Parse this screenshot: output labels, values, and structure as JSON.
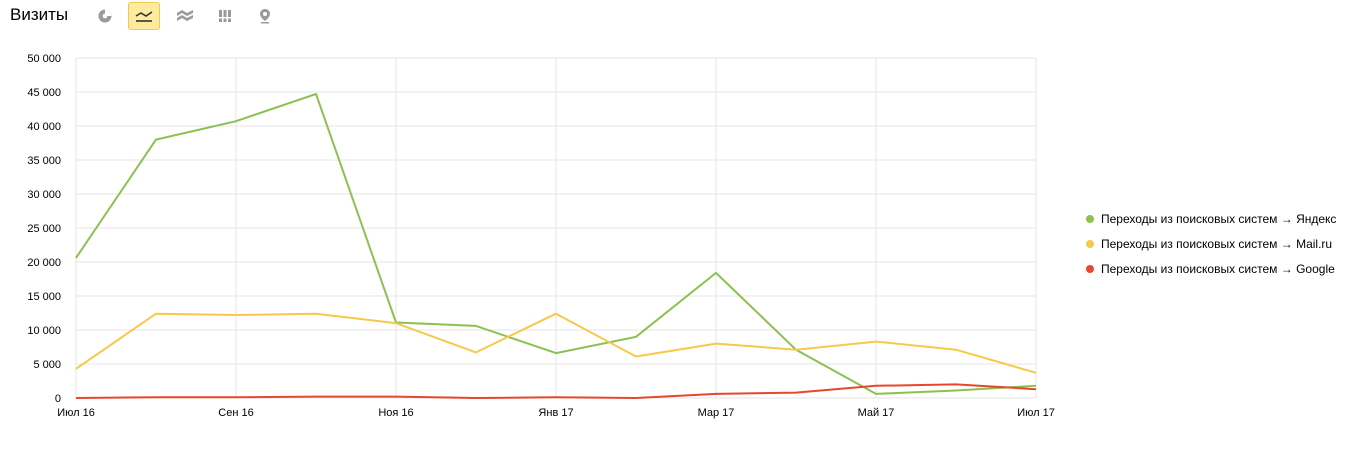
{
  "header": {
    "title": "Визиты",
    "tools": [
      {
        "icon": "pie-chart-icon",
        "active": false
      },
      {
        "icon": "line-chart-icon",
        "active": true
      },
      {
        "icon": "area-chart-icon",
        "active": false
      },
      {
        "icon": "bar-chart-icon",
        "active": false
      },
      {
        "icon": "map-pin-icon",
        "active": false
      }
    ]
  },
  "colors": {
    "yandex": "#8cc152",
    "mailru": "#f6c94a",
    "google": "#e8472f",
    "grid": "#e6e6e6",
    "active_tool": "#ffeba0"
  },
  "legend": {
    "items": [
      {
        "label": "Переходы из поисковых систем → Яндекс",
        "color": "#8cc152"
      },
      {
        "label": "Переходы из поисковых систем → Mail.ru",
        "color": "#f6c94a"
      },
      {
        "label": "Переходы из поисковых систем → Google",
        "color": "#e8472f"
      }
    ]
  },
  "chart_data": {
    "type": "line",
    "title": "",
    "xlabel": "",
    "ylabel": "",
    "x": [
      "2016-07",
      "2016-08",
      "2016-09",
      "2016-10",
      "2016-11",
      "2016-12",
      "2017-01",
      "2017-02",
      "2017-03",
      "2017-04",
      "2017-05",
      "2017-06",
      "2017-07"
    ],
    "x_tick_labels": [
      "Июл 16",
      "Сен 16",
      "Ноя 16",
      "Янв 17",
      "Мар 17",
      "Май 17",
      "Июл 17"
    ],
    "y_tick_labels": [
      "0",
      "5 000",
      "10 000",
      "15 000",
      "20 000",
      "25 000",
      "30 000",
      "35 000",
      "40 000",
      "45 000",
      "50 000"
    ],
    "ylim": [
      0,
      50000
    ],
    "grid": true,
    "legend_position": "right",
    "series": [
      {
        "name": "Переходы из поисковых систем → Яндекс",
        "color": "#8cc152",
        "values": [
          20600,
          38000,
          40700,
          44700,
          11100,
          10600,
          6600,
          9000,
          18400,
          7100,
          600,
          1100,
          1800
        ]
      },
      {
        "name": "Переходы из поисковых систем → Mail.ru",
        "color": "#f6c94a",
        "values": [
          4300,
          12400,
          12200,
          12400,
          11000,
          6700,
          12400,
          6100,
          8000,
          7100,
          8300,
          7100,
          3700
        ]
      },
      {
        "name": "Переходы из поисковых систем → Google",
        "color": "#e8472f",
        "values": [
          0,
          100,
          100,
          200,
          200,
          0,
          100,
          0,
          600,
          800,
          1800,
          2000,
          1300
        ]
      }
    ]
  }
}
